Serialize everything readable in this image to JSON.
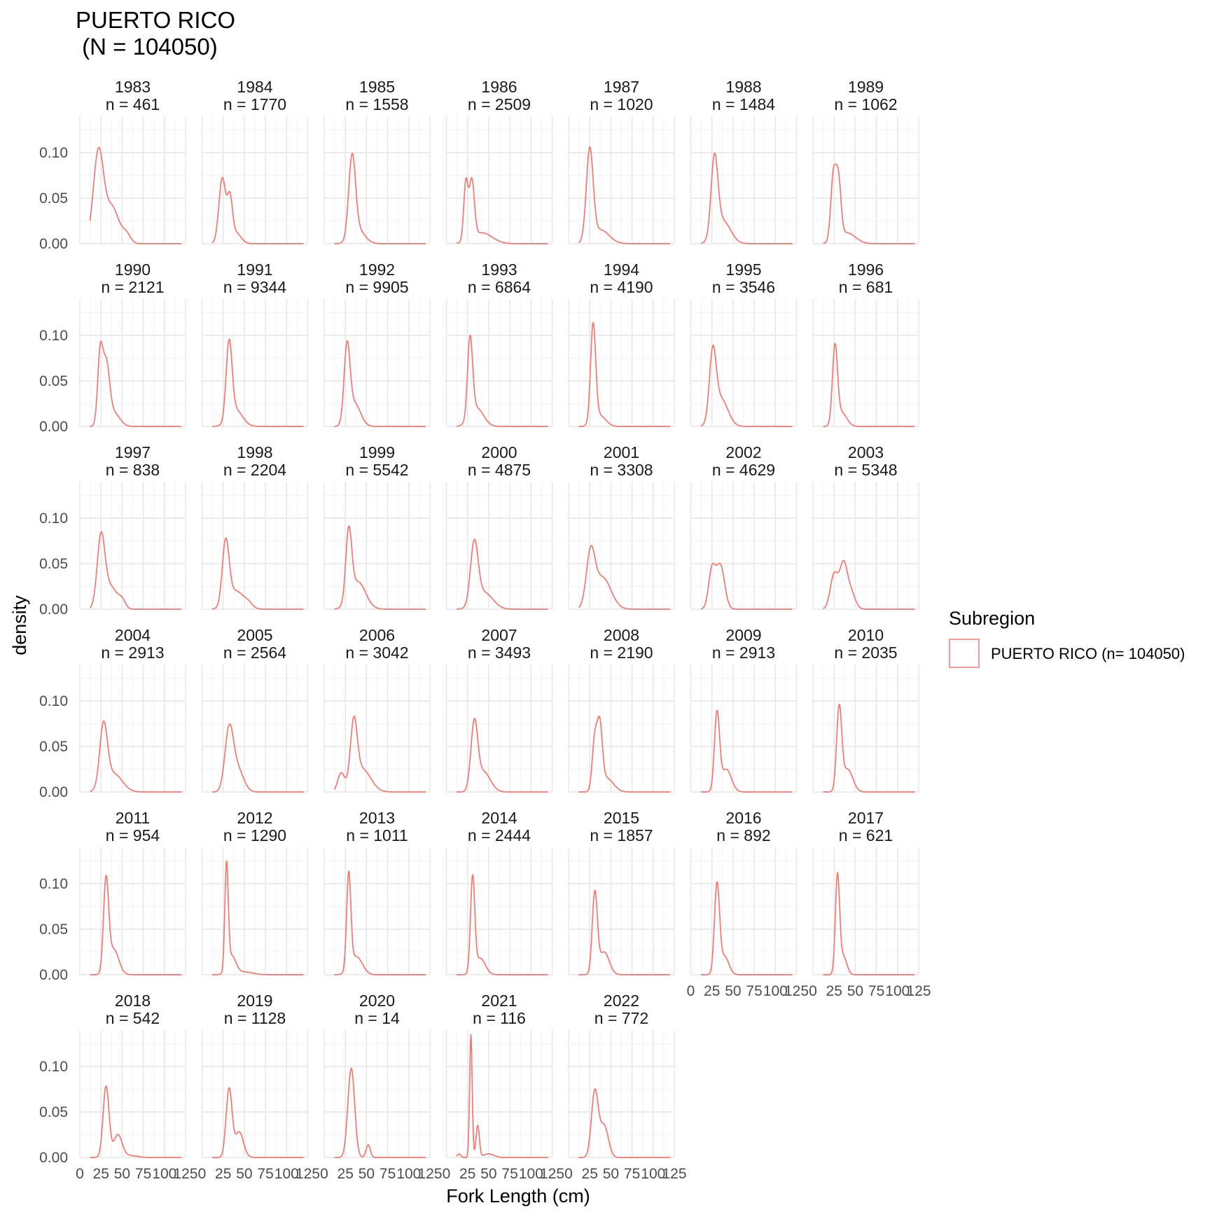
{
  "chart_data": {
    "type": "line",
    "title": "PUERTO RICO\n (N = 104050)",
    "xlabel": "Fork Length (cm)",
    "ylabel": "density",
    "xlim": [
      0,
      125
    ],
    "ylim": [
      0,
      0.14
    ],
    "x_ticks": [
      0,
      25,
      50,
      75,
      100,
      125
    ],
    "x_tick_labels": [
      "0",
      "25",
      "50",
      "75",
      "100",
      "125"
    ],
    "y_ticks": [
      0,
      0.05,
      0.1
    ],
    "y_tick_labels": [
      "0.00",
      "0.05",
      "0.10"
    ],
    "grid": true,
    "line_color": "#F8766D",
    "legend": {
      "title": "Subregion",
      "placement": "right",
      "entries": [
        {
          "label": "PUERTO RICO (n= 104050)",
          "color": "#F8766D"
        }
      ]
    },
    "panels": [
      {
        "year": "1983",
        "n_label": "n = 461",
        "components": [
          [
            22,
            6,
            0.1
          ],
          [
            38,
            8,
            0.04
          ],
          [
            55,
            5,
            0.01
          ]
        ]
      },
      {
        "year": "1984",
        "n_label": "n = 1770",
        "components": [
          [
            24,
            4,
            0.072
          ],
          [
            33,
            3,
            0.045
          ],
          [
            40,
            6,
            0.012
          ]
        ]
      },
      {
        "year": "1985",
        "n_label": "n = 1558",
        "components": [
          [
            33,
            4,
            0.089
          ],
          [
            40,
            8,
            0.015
          ]
        ]
      },
      {
        "year": "1986",
        "n_label": "n = 2509",
        "components": [
          [
            23,
            2.5,
            0.064
          ],
          [
            30,
            3,
            0.064
          ],
          [
            42,
            12,
            0.012
          ]
        ]
      },
      {
        "year": "1987",
        "n_label": "n = 1020",
        "components": [
          [
            25,
            4,
            0.1
          ],
          [
            38,
            10,
            0.015
          ]
        ]
      },
      {
        "year": "1988",
        "n_label": "n = 1484",
        "components": [
          [
            28,
            4,
            0.086
          ],
          [
            38,
            9,
            0.025
          ]
        ]
      },
      {
        "year": "1989",
        "n_label": "n = 1062",
        "components": [
          [
            24,
            3,
            0.07
          ],
          [
            30,
            3,
            0.065
          ],
          [
            40,
            10,
            0.012
          ]
        ]
      },
      {
        "year": "1990",
        "n_label": "n = 2121",
        "components": [
          [
            24,
            3,
            0.075
          ],
          [
            31,
            4,
            0.065
          ],
          [
            40,
            7,
            0.015
          ]
        ]
      },
      {
        "year": "1991",
        "n_label": "n = 9344",
        "components": [
          [
            32,
            3.5,
            0.085
          ],
          [
            40,
            8,
            0.018
          ]
        ]
      },
      {
        "year": "1992",
        "n_label": "n = 9905",
        "components": [
          [
            27,
            3.5,
            0.083
          ],
          [
            36,
            7,
            0.025
          ]
        ]
      },
      {
        "year": "1993",
        "n_label": "n = 6864",
        "components": [
          [
            28,
            3,
            0.088
          ],
          [
            36,
            8,
            0.02
          ]
        ]
      },
      {
        "year": "1994",
        "n_label": "n = 4190",
        "components": [
          [
            29,
            3,
            0.108
          ],
          [
            37,
            7,
            0.012
          ]
        ]
      },
      {
        "year": "1995",
        "n_label": "n = 3546",
        "components": [
          [
            26,
            4,
            0.075
          ],
          [
            36,
            8,
            0.03
          ]
        ]
      },
      {
        "year": "1996",
        "n_label": "n = 681",
        "components": [
          [
            26,
            3,
            0.085
          ],
          [
            34,
            6,
            0.015
          ]
        ]
      },
      {
        "year": "1997",
        "n_label": "n = 838",
        "components": [
          [
            25,
            4.5,
            0.075
          ],
          [
            36,
            8,
            0.025
          ],
          [
            50,
            4,
            0.008
          ]
        ]
      },
      {
        "year": "1998",
        "n_label": "n = 2204",
        "components": [
          [
            28,
            4,
            0.07
          ],
          [
            40,
            9,
            0.02
          ],
          [
            55,
            5,
            0.005
          ]
        ]
      },
      {
        "year": "1999",
        "n_label": "n = 5542",
        "components": [
          [
            29,
            3.5,
            0.077
          ],
          [
            40,
            9,
            0.03
          ]
        ]
      },
      {
        "year": "2000",
        "n_label": "n = 4875",
        "components": [
          [
            33,
            4.5,
            0.068
          ],
          [
            45,
            10,
            0.018
          ]
        ]
      },
      {
        "year": "2001",
        "n_label": "n = 3308",
        "components": [
          [
            26,
            5,
            0.056
          ],
          [
            40,
            10,
            0.035
          ]
        ]
      },
      {
        "year": "2002",
        "n_label": "n = 4629",
        "components": [
          [
            25,
            4,
            0.042
          ],
          [
            35,
            5,
            0.048
          ]
        ]
      },
      {
        "year": "2003",
        "n_label": "n = 5348",
        "components": [
          [
            25,
            4.5,
            0.038
          ],
          [
            36,
            4.5,
            0.048
          ],
          [
            45,
            5,
            0.018
          ]
        ]
      },
      {
        "year": "2004",
        "n_label": "n = 2913",
        "components": [
          [
            28,
            4.5,
            0.068
          ],
          [
            40,
            10,
            0.02
          ]
        ]
      },
      {
        "year": "2005",
        "n_label": "n = 2564",
        "components": [
          [
            32,
            5,
            0.065
          ],
          [
            42,
            7,
            0.025
          ]
        ]
      },
      {
        "year": "2006",
        "n_label": "n = 3042",
        "components": [
          [
            20,
            4,
            0.02
          ],
          [
            35,
            4,
            0.068
          ],
          [
            45,
            10,
            0.025
          ]
        ]
      },
      {
        "year": "2007",
        "n_label": "n = 3493",
        "components": [
          [
            33,
            4,
            0.072
          ],
          [
            44,
            8,
            0.022
          ]
        ]
      },
      {
        "year": "2008",
        "n_label": "n = 2190",
        "components": [
          [
            31,
            3,
            0.055
          ],
          [
            37,
            3,
            0.065
          ],
          [
            45,
            8,
            0.015
          ]
        ]
      },
      {
        "year": "2009",
        "n_label": "n = 2913",
        "components": [
          [
            31,
            3,
            0.085
          ],
          [
            42,
            6,
            0.025
          ]
        ]
      },
      {
        "year": "2010",
        "n_label": "n = 2035",
        "components": [
          [
            31,
            3,
            0.09
          ],
          [
            41,
            6,
            0.025
          ]
        ]
      },
      {
        "year": "2011",
        "n_label": "n = 954",
        "components": [
          [
            31,
            3,
            0.1
          ],
          [
            40,
            6,
            0.028
          ]
        ]
      },
      {
        "year": "2012",
        "n_label": "n = 1290",
        "components": [
          [
            29,
            2,
            0.115
          ],
          [
            35,
            5,
            0.02
          ],
          [
            50,
            10,
            0.003
          ]
        ]
      },
      {
        "year": "2013",
        "n_label": "n = 1011",
        "components": [
          [
            29,
            2.5,
            0.105
          ],
          [
            38,
            7,
            0.02
          ]
        ]
      },
      {
        "year": "2014",
        "n_label": "n = 2444",
        "components": [
          [
            31,
            2.5,
            0.104
          ],
          [
            40,
            6,
            0.018
          ]
        ]
      },
      {
        "year": "2015",
        "n_label": "n = 1857",
        "components": [
          [
            31,
            3,
            0.088
          ],
          [
            42,
            6,
            0.025
          ]
        ]
      },
      {
        "year": "2016",
        "n_label": "n = 892",
        "components": [
          [
            31,
            3,
            0.098
          ],
          [
            40,
            5,
            0.02
          ]
        ]
      },
      {
        "year": "2017",
        "n_label": "n = 621",
        "components": [
          [
            29,
            2.5,
            0.108
          ],
          [
            36,
            4,
            0.02
          ]
        ]
      },
      {
        "year": "2018",
        "n_label": "n = 542",
        "components": [
          [
            31,
            3.5,
            0.078
          ],
          [
            45,
            5,
            0.025
          ],
          [
            60,
            8,
            0.002
          ]
        ]
      },
      {
        "year": "2019",
        "n_label": "n = 1128",
        "components": [
          [
            32,
            3.5,
            0.075
          ],
          [
            44,
            5,
            0.028
          ]
        ]
      },
      {
        "year": "2020",
        "n_label": "n = 14",
        "components": [
          [
            32,
            4,
            0.098
          ],
          [
            52,
            2.5,
            0.014
          ]
        ]
      },
      {
        "year": "2021",
        "n_label": "n = 116",
        "components": [
          [
            29,
            1.5,
            0.135
          ],
          [
            37,
            2,
            0.035
          ],
          [
            15,
            2,
            0.004
          ],
          [
            50,
            6,
            0.004
          ]
        ]
      },
      {
        "year": "2022",
        "n_label": "n = 772",
        "components": [
          [
            31,
            4,
            0.072
          ],
          [
            42,
            5,
            0.035
          ]
        ]
      }
    ]
  }
}
